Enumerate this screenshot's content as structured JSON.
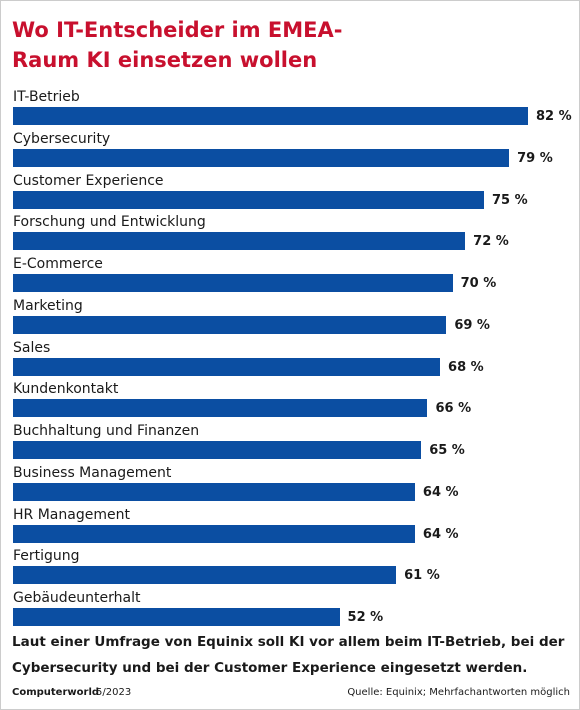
{
  "chart_data": {
    "type": "hbar",
    "title": "Wo IT-Entscheider im EMEA-Raum KI einsetzen wollen",
    "categories": [
      "IT-Betrieb",
      "Cybersecurity",
      "Customer Experience",
      "Forschung und Entwicklung",
      "E-Commerce",
      "Marketing",
      "Sales",
      "Kundenkontakt",
      "Buchhaltung und Finanzen",
      "Business Management",
      "HR Management",
      "Fertigung",
      "Gebäudeunterhalt"
    ],
    "values": [
      82,
      79,
      75,
      72,
      70,
      69,
      68,
      66,
      65,
      64,
      64,
      61,
      52
    ],
    "value_labels": [
      "82 %",
      "79 %",
      "75 %",
      "72 %",
      "70 %",
      "69 %",
      "68 %",
      "66 %",
      "65 %",
      "64 %",
      "64 %",
      "61 %",
      "52 %"
    ],
    "color": "#0b4ea2",
    "annotation": "Laut einer Umfrage von Equinix soll KI vor allem beim IT-Betrieb, bei der Cybersecurity und bei der Customer Experience eingesetzt werden.",
    "publisher": "Computerworld",
    "issue": "5/2023",
    "source": "Quelle: Equinix; Mehrfachantworten möglich"
  }
}
